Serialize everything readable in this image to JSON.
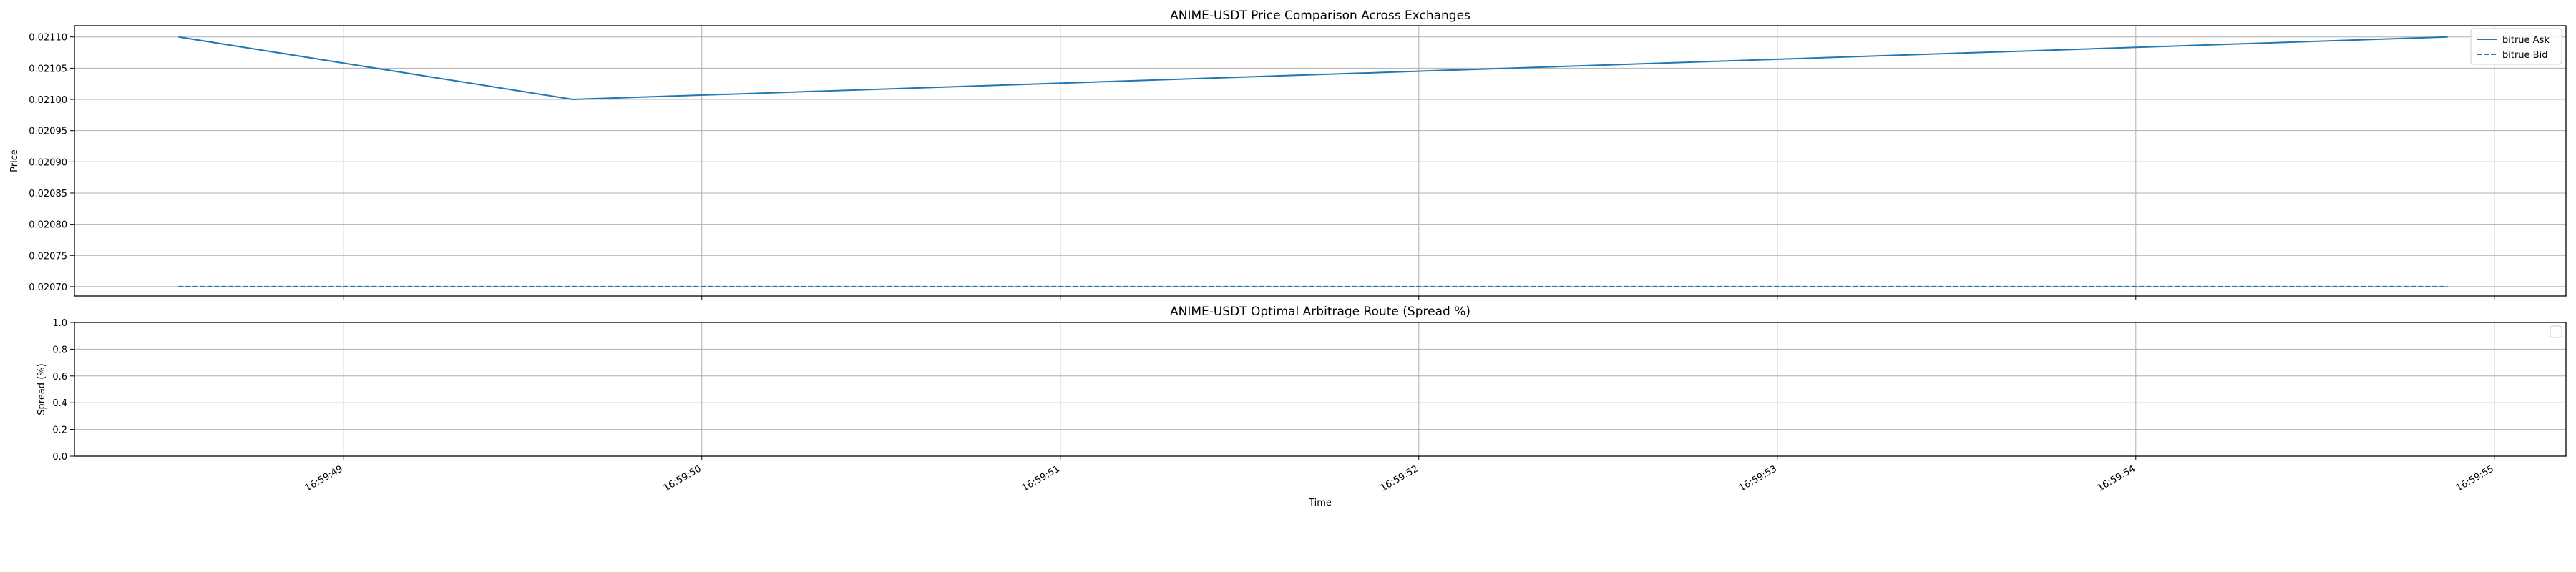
{
  "chart_data": [
    {
      "type": "line",
      "title": "ANIME-USDT Price Comparison Across Exchanges",
      "xlabel": "",
      "ylabel": "Price",
      "ylim": [
        0.020685,
        0.021118
      ],
      "y_ticks": [
        "0.02070",
        "0.02075",
        "0.02080",
        "0.02085",
        "0.02090",
        "0.02095",
        "0.02100",
        "0.02105",
        "0.02110"
      ],
      "x_ticks": [
        "16:59:49",
        "16:59:50",
        "16:59:51",
        "16:59:52",
        "16:59:53",
        "16:59:54",
        "16:59:55"
      ],
      "xlim": [
        "16:59:48.25",
        "16:59:55.20"
      ],
      "grid": true,
      "legend_position": "top-right",
      "series": [
        {
          "name": "bitrue Ask",
          "color": "#1f77b4",
          "linestyle": "solid",
          "x": [
            "16:59:48.54",
            "16:59:49.64",
            "16:59:54.87"
          ],
          "y": [
            0.0211,
            0.021,
            0.0211
          ]
        },
        {
          "name": "bitrue Bid",
          "color": "#1f77b4",
          "linestyle": "dashed",
          "x": [
            "16:59:48.54",
            "16:59:49.64",
            "16:59:54.87"
          ],
          "y": [
            0.0207,
            0.0207,
            0.0207
          ]
        }
      ]
    },
    {
      "type": "line",
      "title": "ANIME-USDT Optimal Arbitrage Route (Spread %)",
      "xlabel": "Time",
      "ylabel": "Spread (%)",
      "ylim": [
        0,
        1
      ],
      "y_ticks": [
        "0.0",
        "0.2",
        "0.4",
        "0.6",
        "0.8",
        "1.0"
      ],
      "x_ticks": [
        "16:59:49",
        "16:59:50",
        "16:59:51",
        "16:59:52",
        "16:59:53",
        "16:59:54",
        "16:59:55"
      ],
      "xlim": [
        "16:59:48.25",
        "16:59:55.20"
      ],
      "grid": true,
      "legend_position": "top-right",
      "series": []
    }
  ]
}
